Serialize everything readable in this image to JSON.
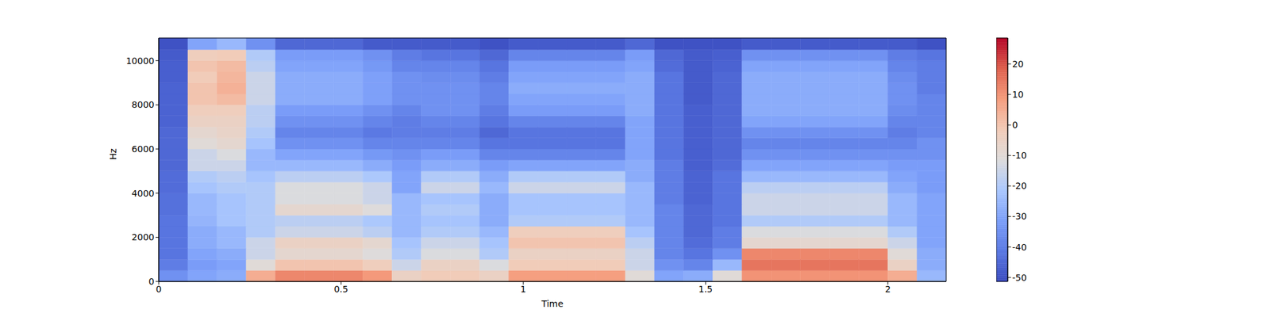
{
  "chart_data": {
    "type": "heatmap",
    "xlabel": "Time",
    "ylabel": "Hz",
    "x_bins": [
      0,
      0.08,
      0.16,
      0.24,
      0.32,
      0.4,
      0.48,
      0.56,
      0.64,
      0.72,
      0.8,
      0.88,
      0.96,
      1.04,
      1.12,
      1.2,
      1.28,
      1.36,
      1.44,
      1.52,
      1.6,
      1.68,
      1.76,
      1.84,
      1.92,
      2,
      2.08,
      2.16
    ],
    "y_bins": [
      0,
      500,
      1000,
      1500,
      2000,
      2500,
      3000,
      3500,
      4000,
      4500,
      5000,
      5500,
      6000,
      6500,
      7000,
      7500,
      8000,
      8500,
      9000,
      9500,
      10000,
      10500,
      11025
    ],
    "cells": [
      [
        -35,
        -30,
        -28,
        5,
        12,
        12,
        12,
        9,
        -5,
        -2,
        -2,
        -5,
        8,
        8,
        8,
        8,
        -10,
        -30,
        -28,
        -10,
        10,
        10,
        10,
        10,
        10,
        5,
        -25
      ],
      [
        -40,
        -32,
        -30,
        -10,
        0,
        0,
        0,
        -3,
        -15,
        -5,
        -5,
        -12,
        -2,
        -2,
        -2,
        -2,
        -15,
        -35,
        -38,
        -25,
        15,
        15,
        15,
        15,
        15,
        -5,
        -28
      ],
      [
        -42,
        -30,
        -28,
        -15,
        -8,
        -8,
        -8,
        -11,
        -20,
        -12,
        -12,
        -20,
        -5,
        -5,
        -5,
        -5,
        -15,
        -38,
        -42,
        -35,
        12,
        12,
        12,
        12,
        12,
        -10,
        -28
      ],
      [
        -42,
        -28,
        -25,
        -15,
        -5,
        -5,
        -5,
        -8,
        -22,
        -15,
        -15,
        -22,
        0,
        0,
        0,
        0,
        -18,
        -38,
        -44,
        -40,
        -8,
        -8,
        -8,
        -8,
        -8,
        -15,
        -30
      ],
      [
        -42,
        -28,
        -25,
        -20,
        -15,
        -15,
        -15,
        -18,
        -25,
        -20,
        -20,
        -25,
        -3,
        -3,
        -3,
        -3,
        -22,
        -38,
        -45,
        -40,
        -12,
        -12,
        -12,
        -12,
        -12,
        -20,
        -30
      ],
      [
        -42,
        -26,
        -22,
        -20,
        -18,
        -18,
        -18,
        -21,
        -25,
        -22,
        -22,
        -28,
        -20,
        -20,
        -20,
        -20,
        -25,
        -38,
        -45,
        -42,
        -20,
        -20,
        -20,
        -20,
        -20,
        -25,
        -30
      ],
      [
        -43,
        -25,
        -22,
        -20,
        -8,
        -8,
        -8,
        -11,
        -25,
        -20,
        -20,
        -28,
        -22,
        -22,
        -22,
        -22,
        -25,
        -38,
        -45,
        -42,
        -15,
        -15,
        -15,
        -15,
        -15,
        -25,
        -30
      ],
      [
        -43,
        -25,
        -22,
        -20,
        -12,
        -12,
        -12,
        -15,
        -25,
        -22,
        -22,
        -28,
        -22,
        -22,
        -22,
        -22,
        -25,
        -40,
        -46,
        -42,
        -15,
        -15,
        -15,
        -15,
        -15,
        -25,
        -30
      ],
      [
        -44,
        -22,
        -20,
        -20,
        -12,
        -12,
        -12,
        -15,
        -30,
        -15,
        -15,
        -25,
        -15,
        -15,
        -15,
        -15,
        -25,
        -40,
        -46,
        -42,
        -18,
        -18,
        -18,
        -18,
        -18,
        -28,
        -32
      ],
      [
        -44,
        -20,
        -18,
        -22,
        -18,
        -18,
        -18,
        -21,
        -30,
        -20,
        -20,
        -28,
        -20,
        -20,
        -20,
        -20,
        -28,
        -40,
        -46,
        -42,
        -25,
        -25,
        -25,
        -25,
        -25,
        -30,
        -32
      ],
      [
        -45,
        -15,
        -15,
        -25,
        -25,
        -25,
        -25,
        -28,
        -32,
        -28,
        -28,
        -32,
        -30,
        -30,
        -30,
        -30,
        -28,
        -40,
        -47,
        -44,
        -30,
        -30,
        -30,
        -30,
        -30,
        -32,
        -32
      ],
      [
        -45,
        -15,
        -12,
        -25,
        -30,
        -30,
        -30,
        -33,
        -35,
        -32,
        -32,
        -38,
        -38,
        -38,
        -38,
        -38,
        -30,
        -42,
        -47,
        -45,
        -35,
        -35,
        -35,
        -35,
        -35,
        -35,
        -35
      ],
      [
        -45,
        -10,
        -8,
        -22,
        -35,
        -35,
        -35,
        -38,
        -38,
        -38,
        -38,
        -42,
        -42,
        -42,
        -42,
        -42,
        -30,
        -42,
        -47,
        -45,
        -38,
        -38,
        -38,
        -38,
        -38,
        -38,
        -35
      ],
      [
        -45,
        -8,
        -6,
        -20,
        -38,
        -38,
        -38,
        -41,
        -40,
        -40,
        -40,
        -45,
        -42,
        -42,
        -42,
        -42,
        -30,
        -42,
        -47,
        -45,
        -35,
        -35,
        -35,
        -35,
        -35,
        -40,
        -38
      ],
      [
        -46,
        -5,
        -5,
        -18,
        -35,
        -35,
        -35,
        -38,
        -40,
        -38,
        -38,
        -42,
        -38,
        -38,
        -38,
        -38,
        -30,
        -42,
        -47,
        -45,
        -30,
        -30,
        -30,
        -30,
        -30,
        -38,
        -38
      ],
      [
        -46,
        -3,
        -3,
        -18,
        -32,
        -32,
        -32,
        -35,
        -38,
        -35,
        -35,
        -40,
        -32,
        -32,
        -32,
        -32,
        -28,
        -42,
        -47,
        -45,
        -28,
        -28,
        -28,
        -28,
        -28,
        -36,
        -38
      ],
      [
        -46,
        0,
        2,
        -15,
        -28,
        -28,
        -28,
        -31,
        -35,
        -35,
        -35,
        -38,
        -30,
        -30,
        -30,
        -30,
        -28,
        -42,
        -48,
        -45,
        -28,
        -28,
        -28,
        -28,
        -28,
        -35,
        -38
      ],
      [
        -46,
        0,
        4,
        -15,
        -28,
        -28,
        -28,
        -31,
        -35,
        -35,
        -35,
        -38,
        -28,
        -28,
        -28,
        -28,
        -28,
        -42,
        -48,
        -45,
        -28,
        -28,
        -28,
        -28,
        -28,
        -35,
        -40
      ],
      [
        -47,
        -2,
        3,
        -15,
        -28,
        -28,
        -28,
        -31,
        -35,
        -36,
        -36,
        -40,
        -30,
        -30,
        -30,
        -30,
        -28,
        -42,
        -48,
        -45,
        -28,
        -28,
        -28,
        -28,
        -28,
        -36,
        -40
      ],
      [
        -47,
        0,
        2,
        -18,
        -30,
        -30,
        -30,
        -33,
        -38,
        -38,
        -38,
        -42,
        -32,
        -32,
        -32,
        -32,
        -30,
        -44,
        -48,
        -46,
        -30,
        -30,
        -30,
        -30,
        -30,
        -38,
        -40
      ],
      [
        -48,
        -3,
        -2,
        -20,
        -32,
        -32,
        -32,
        -35,
        -40,
        -42,
        -42,
        -45,
        -38,
        -38,
        -38,
        -38,
        -32,
        -45,
        -48,
        -47,
        -35,
        -35,
        -35,
        -35,
        -35,
        -40,
        -42
      ],
      [
        -50,
        -30,
        -25,
        -35,
        -45,
        -45,
        -45,
        -48,
        -48,
        -48,
        -48,
        -50,
        -48,
        -48,
        -48,
        -48,
        -45,
        -50,
        -50,
        -50,
        -48,
        -48,
        -48,
        -48,
        -48,
        -48,
        -50
      ]
    ],
    "xlim": [
      0,
      2.16
    ],
    "ylim": [
      0,
      11025
    ],
    "xticks": [
      0,
      0.5,
      1,
      1.5,
      2
    ],
    "yticks": [
      0,
      2000,
      4000,
      6000,
      8000,
      10000
    ],
    "colorbar": {
      "range": [
        -51.3,
        28.5
      ],
      "ticks": [
        -50,
        -40,
        -30,
        -20,
        -10,
        0,
        10,
        20
      ]
    }
  }
}
